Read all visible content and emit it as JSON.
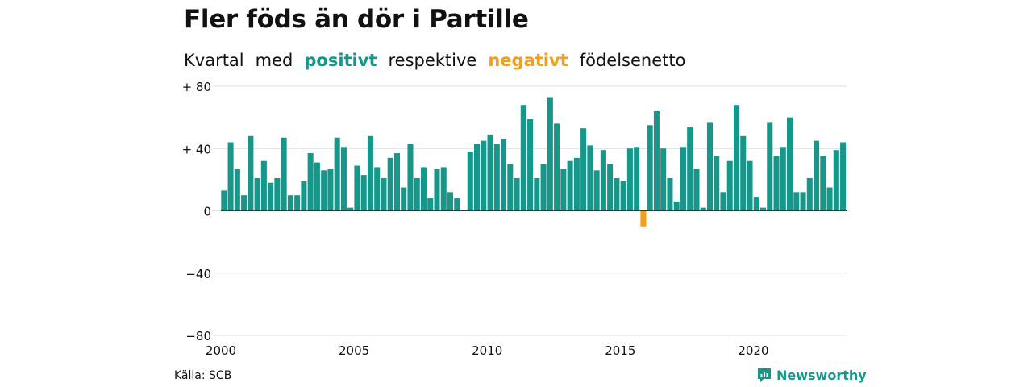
{
  "header": {
    "title": "Fler föds än dör i Partille",
    "subtitle_parts": [
      "Kvartal",
      "med",
      "positivt",
      "respektive",
      "negativt",
      "födelsenetto"
    ]
  },
  "footer": {
    "source": "Källa: SCB",
    "brand": "Newsworthy",
    "brand_icon": "newsworthy-logo-icon"
  },
  "colors": {
    "positive": "#17968a",
    "negative": "#f0a01e",
    "grid": "#dddddd"
  },
  "chart_data": {
    "type": "bar",
    "title": "Fler föds än dör i Partille",
    "subtitle": "Kvartal med positivt respektive negativt födelsenetto",
    "ylim": [
      -80,
      80
    ],
    "y_ticks": [
      80,
      40,
      0,
      -40,
      -80
    ],
    "y_tick_labels": [
      "+ 80",
      "+ 40",
      "0",
      "−40",
      "−80"
    ],
    "x_ticks": [
      "2000",
      "2005",
      "2010",
      "2015",
      "2020"
    ],
    "grid": true,
    "series": [
      {
        "start": "2000 Q1",
        "period": "quarter",
        "values": [
          13,
          44,
          27,
          10,
          48,
          21,
          32,
          18,
          21,
          47,
          10,
          10,
          19,
          37,
          31,
          26,
          27,
          47,
          41,
          2,
          29,
          23,
          48,
          28,
          21,
          34,
          37,
          15,
          43,
          21,
          28,
          8,
          27,
          28,
          12,
          8,
          0,
          38,
          43,
          45,
          49,
          43,
          46,
          30,
          21,
          68,
          59,
          21,
          30,
          73,
          56,
          27,
          32,
          34,
          53,
          42,
          26,
          39,
          30,
          21,
          19,
          40,
          41,
          -10,
          55,
          64,
          40,
          21,
          6,
          41,
          54,
          27,
          2,
          57,
          35,
          12,
          32,
          68,
          48,
          32,
          9,
          2,
          57,
          35,
          41,
          60,
          12,
          12,
          21,
          45,
          35,
          15,
          39,
          44
        ]
      }
    ]
  }
}
